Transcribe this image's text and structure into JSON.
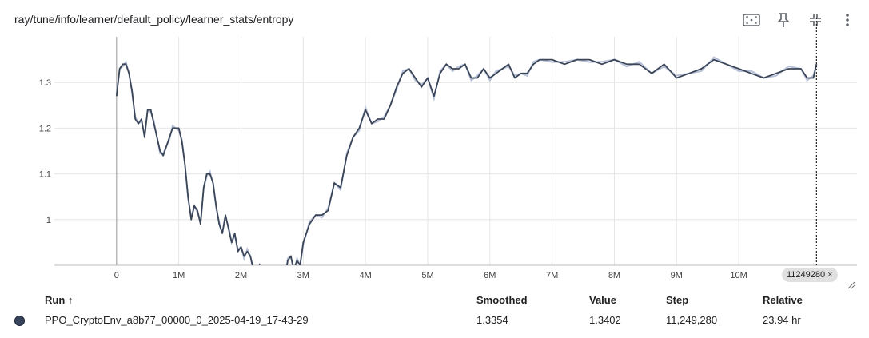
{
  "header": {
    "title": "ray/tune/info/learner/default_policy/learner_stats/entropy"
  },
  "toolbar": {
    "icons": [
      "fit-domain-icon",
      "pin-icon",
      "collapse-icon",
      "more-vert-icon"
    ]
  },
  "step_pill": {
    "label": "11249280",
    "close": "×"
  },
  "chart_data": {
    "type": "line",
    "ylim": [
      0.9,
      1.4
    ],
    "xlim": [
      -1000000,
      11900000
    ],
    "x_ticks": [
      0,
      1000000,
      2000000,
      3000000,
      4000000,
      5000000,
      6000000,
      7000000,
      8000000,
      9000000,
      10000000
    ],
    "x_tick_labels": [
      "0",
      "1M",
      "2M",
      "3M",
      "4M",
      "5M",
      "6M",
      "7M",
      "8M",
      "9M",
      "10M"
    ],
    "y_ticks": [
      1.0,
      1.1,
      1.2,
      1.3
    ],
    "y_tick_labels": [
      "1",
      "1.1",
      "1.2",
      "1.3"
    ],
    "grid": true,
    "colors": {
      "smoothed": "#3a4558",
      "raw": "#b7c0d6"
    },
    "hover_step": 11249280,
    "series": [
      {
        "x": [
          0,
          50000,
          100000,
          150000,
          200000,
          250000,
          300000,
          350000,
          400000,
          450000,
          500000,
          550000,
          600000,
          650000,
          700000,
          750000,
          800000,
          850000,
          900000,
          950000,
          1000000,
          1050000,
          1100000,
          1150000,
          1200000,
          1250000,
          1300000,
          1350000,
          1400000,
          1450000,
          1500000,
          1550000,
          1600000,
          1650000,
          1700000,
          1750000,
          1800000,
          1850000,
          1900000,
          1950000,
          2000000,
          2050000,
          2100000,
          2150000,
          2200000,
          2250000,
          2300000,
          2400000,
          2500000,
          2600000,
          2700000,
          2750000,
          2800000,
          2850000,
          2900000,
          2950000,
          3000000,
          3100000,
          3200000,
          3300000,
          3400000,
          3500000,
          3600000,
          3700000,
          3800000,
          3900000,
          4000000,
          4100000,
          4200000,
          4300000,
          4400000,
          4500000,
          4600000,
          4700000,
          4800000,
          4900000,
          5000000,
          5100000,
          5200000,
          5300000,
          5400000,
          5500000,
          5600000,
          5700000,
          5800000,
          5900000,
          6000000,
          6100000,
          6200000,
          6300000,
          6400000,
          6500000,
          6600000,
          6700000,
          6800000,
          7000000,
          7200000,
          7400000,
          7600000,
          7800000,
          8000000,
          8200000,
          8400000,
          8600000,
          8800000,
          9000000,
          9200000,
          9400000,
          9600000,
          9800000,
          10000000,
          10200000,
          10400000,
          10600000,
          10800000,
          11000000,
          11100000,
          11200000,
          11249280
        ],
        "y": [
          1.27,
          1.33,
          1.34,
          1.34,
          1.32,
          1.28,
          1.22,
          1.21,
          1.22,
          1.18,
          1.24,
          1.24,
          1.21,
          1.18,
          1.15,
          1.14,
          1.16,
          1.18,
          1.2,
          1.2,
          1.2,
          1.17,
          1.12,
          1.05,
          1.0,
          1.03,
          1.02,
          0.99,
          1.07,
          1.1,
          1.1,
          1.08,
          1.03,
          0.99,
          0.97,
          1.01,
          0.98,
          0.95,
          0.97,
          0.93,
          0.94,
          0.92,
          0.93,
          0.92,
          0.89,
          0.87,
          0.9,
          0.86,
          0.88,
          0.88,
          0.86,
          0.91,
          0.92,
          0.89,
          0.91,
          0.9,
          0.95,
          0.99,
          1.01,
          1.01,
          1.02,
          1.08,
          1.07,
          1.14,
          1.18,
          1.2,
          1.24,
          1.21,
          1.22,
          1.22,
          1.25,
          1.29,
          1.32,
          1.33,
          1.31,
          1.29,
          1.31,
          1.27,
          1.32,
          1.34,
          1.33,
          1.33,
          1.34,
          1.31,
          1.31,
          1.33,
          1.31,
          1.32,
          1.33,
          1.34,
          1.31,
          1.32,
          1.32,
          1.34,
          1.35,
          1.35,
          1.34,
          1.35,
          1.35,
          1.34,
          1.35,
          1.34,
          1.34,
          1.32,
          1.34,
          1.31,
          1.32,
          1.33,
          1.35,
          1.34,
          1.33,
          1.32,
          1.31,
          1.32,
          1.33,
          1.33,
          1.31,
          1.31,
          1.3402
        ]
      }
    ]
  },
  "table": {
    "headers": {
      "run": "Run",
      "sort": "↑",
      "smoothed": "Smoothed",
      "value": "Value",
      "step": "Step",
      "relative": "Relative"
    },
    "rows": [
      {
        "color": "#37425b",
        "name": "PPO_CryptoEnv_a8b77_00000_0_2025-04-19_17-43-29",
        "smoothed": "1.3354",
        "value": "1.3402",
        "step": "11,249,280",
        "relative": "23.94 hr"
      }
    ]
  }
}
